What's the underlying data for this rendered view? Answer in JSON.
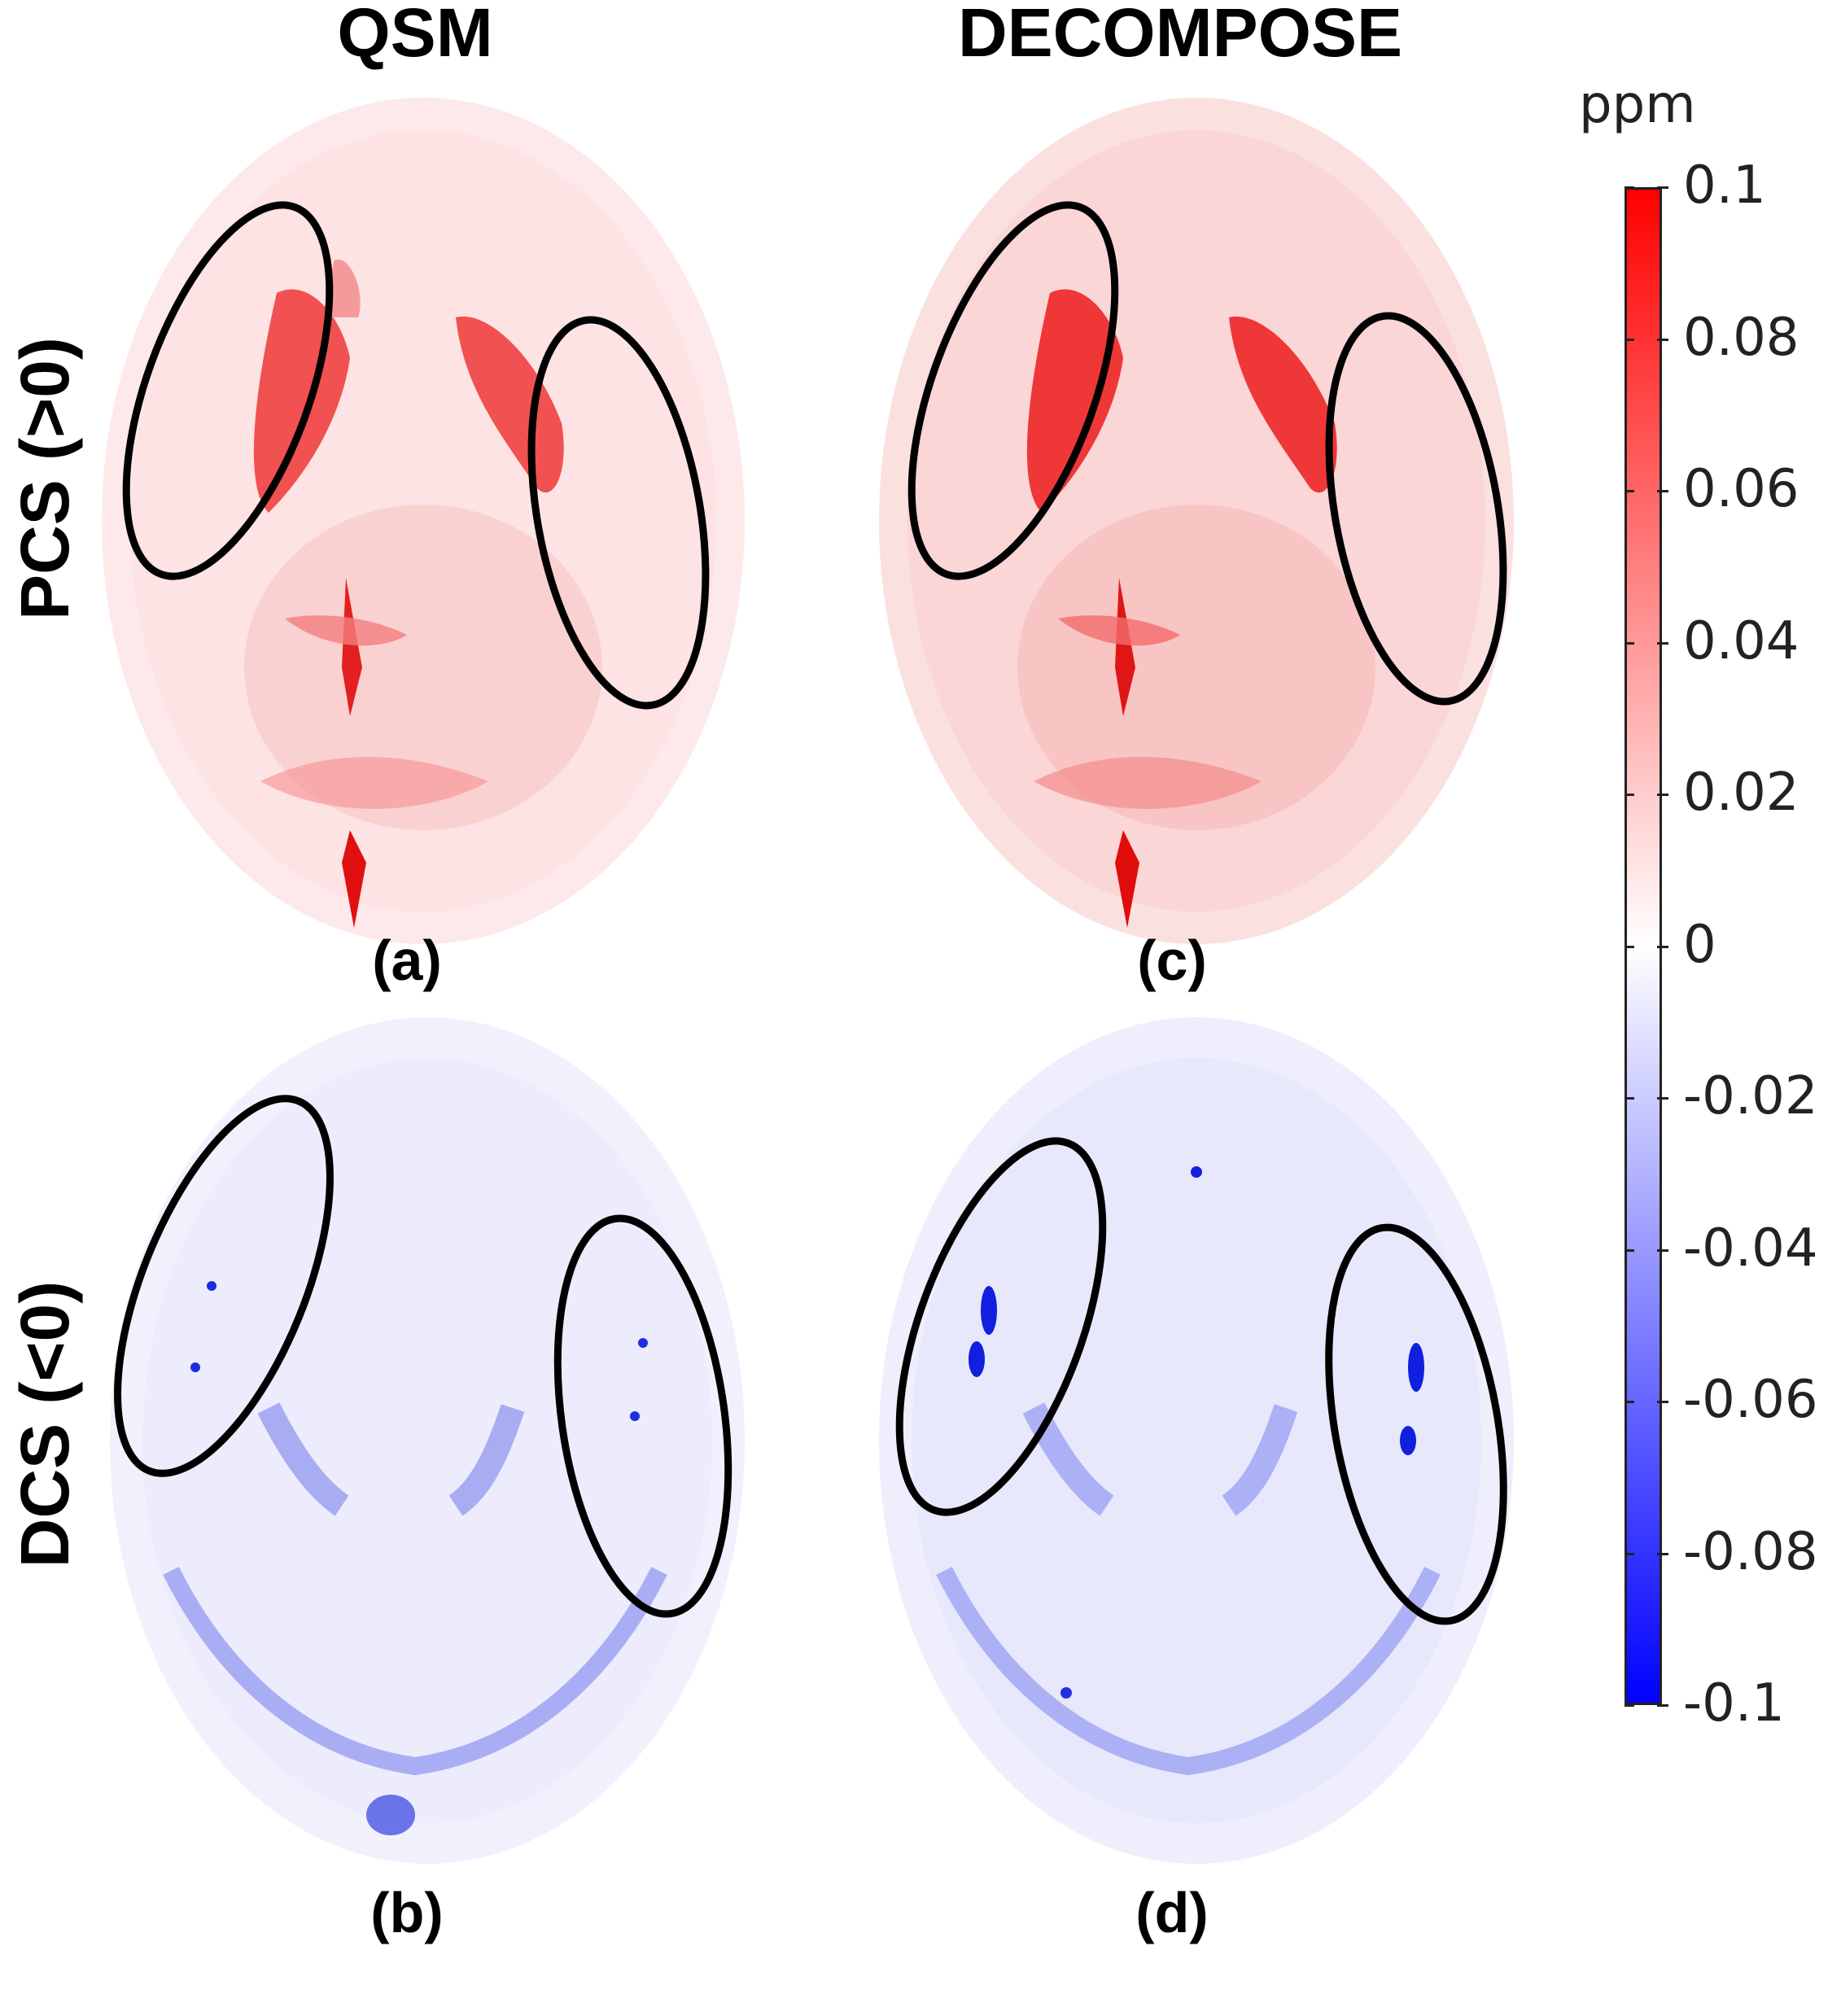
{
  "columns": {
    "qsm": "QSM",
    "decompose": "DECOMPOSE"
  },
  "rows": {
    "pcs": "PCS (>0)",
    "dcs": "DCS (<0)"
  },
  "panels": {
    "a": "(a)",
    "b": "(b)",
    "c": "(c)",
    "d": "(d)"
  },
  "colorbar": {
    "unit": "ppm",
    "ticks": [
      "0.1",
      "0.08",
      "0.06",
      "0.04",
      "0.02",
      "0",
      "-0.02",
      "-0.04",
      "-0.06",
      "-0.08",
      "-0.1"
    ],
    "range": [
      -0.1,
      0.1
    ],
    "colors": {
      "positive": "#ff0000",
      "zero": "#ffffff",
      "negative": "#0000ff"
    }
  },
  "colors": {
    "pcs_light": "#fbd9d9",
    "pcs_strong": "#ee1111",
    "dcs_light": "#e3e3fb",
    "dcs_strong": "#3344ee"
  }
}
